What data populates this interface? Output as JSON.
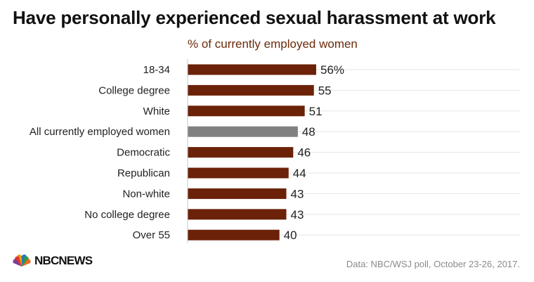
{
  "title": "Have personally experienced sexual harassment at work",
  "subtitle": "% of currently employed women",
  "logo": {
    "text": "NBCNEWS",
    "icon": "nbc-peacock-icon"
  },
  "source": "Data: NBC/WSJ poll, October 23-26, 2017.",
  "colors": {
    "bar": "#6b2208",
    "highlight": "#808080",
    "grid": "#e6e6e6",
    "axis": "#c8c8c8",
    "subtitle": "#6b2a0a"
  },
  "chart_data": {
    "type": "bar",
    "orientation": "horizontal",
    "categories": [
      "18-34",
      "College degree",
      "White",
      "All currently employed women",
      "Democratic",
      "Republican",
      "Non-white",
      "No college degree",
      "Over 55"
    ],
    "values": [
      56,
      55,
      51,
      48,
      46,
      44,
      43,
      43,
      40
    ],
    "value_labels": [
      "56%",
      "55",
      "51",
      "48",
      "46",
      "44",
      "43",
      "43",
      "40"
    ],
    "highlight_index": 3,
    "xlim": [
      0,
      100
    ],
    "grid": true,
    "legend": "none"
  }
}
